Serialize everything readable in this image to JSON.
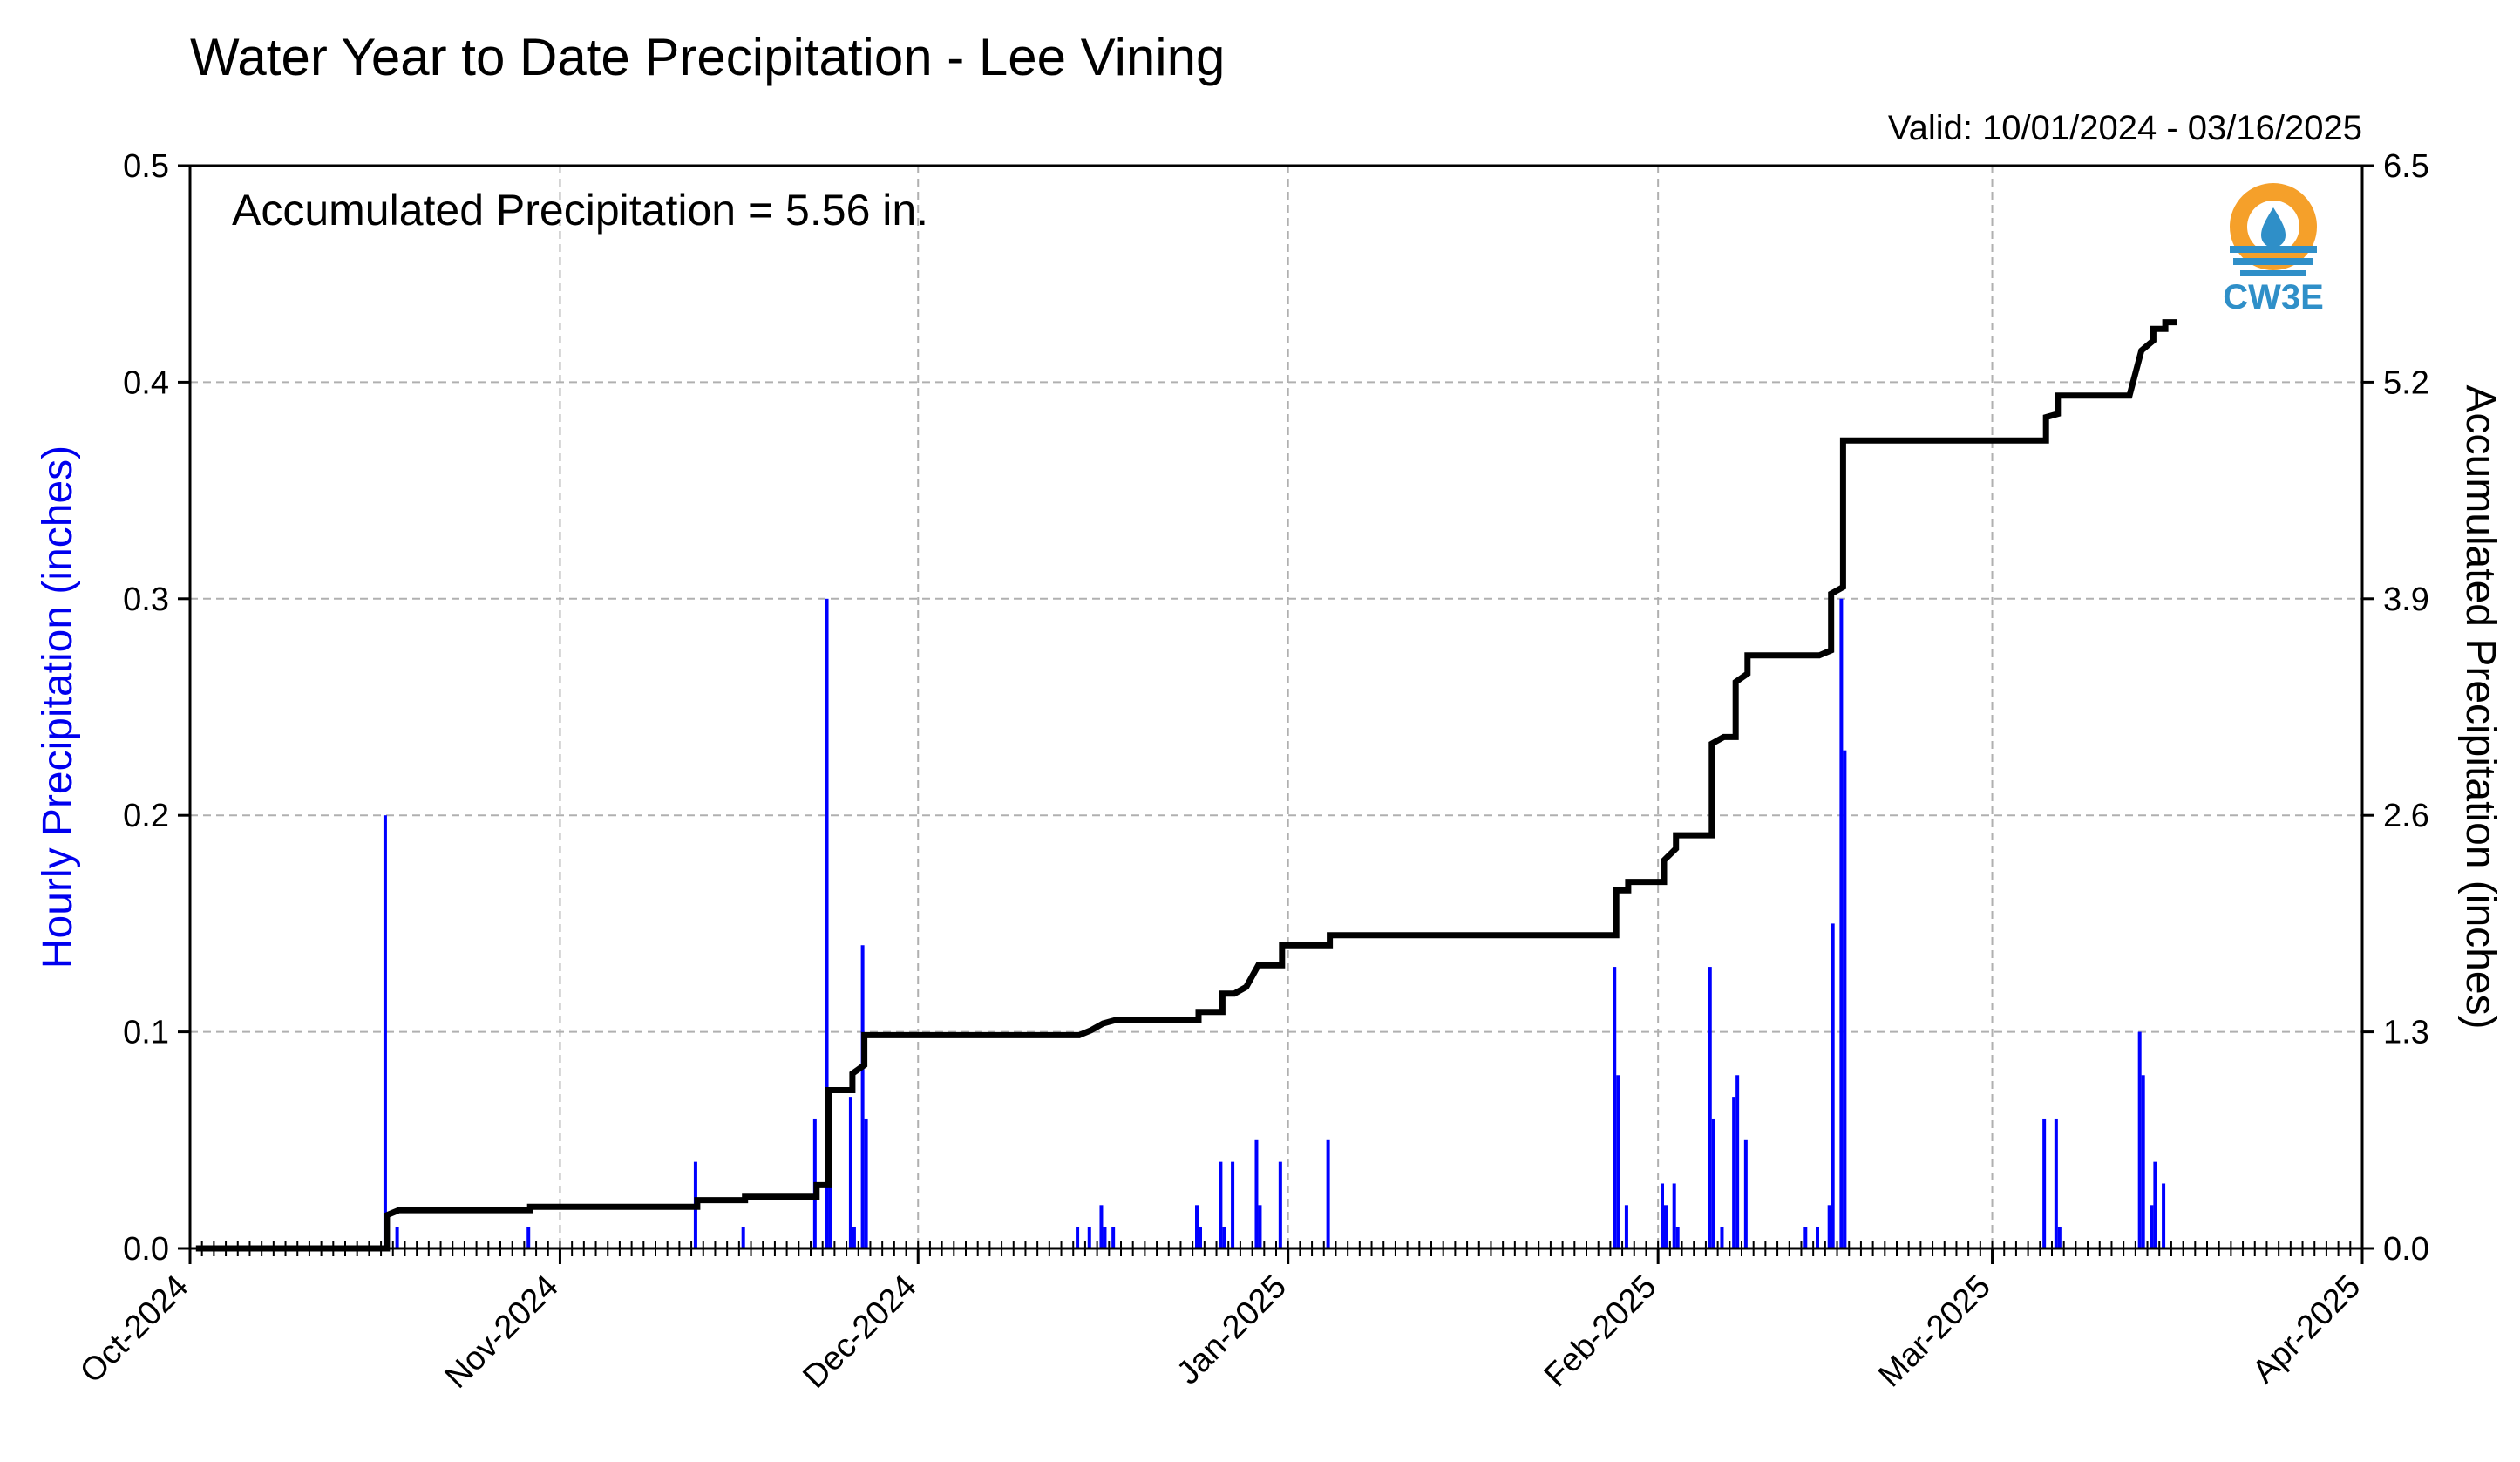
{
  "chart_data": {
    "type": "bar",
    "title": "Water Year to Date Precipitation - Lee Vining",
    "valid_range": "Valid: 10/01/2024 - 03/16/2025",
    "annotation": "Accumulated Precipitation = 5.56 in.",
    "logo_text": "CW3E",
    "ylabel_left": "Hourly Precipitation (inches)",
    "ylabel_right": "Accumulated Precipitation (inches)",
    "x_range": [
      "2024-10-01",
      "2025-04-01"
    ],
    "ylim_left": [
      0,
      0.5
    ],
    "ylim_right": [
      0,
      6.5
    ],
    "yticks_left": [
      "0.0",
      "0.1",
      "0.2",
      "0.3",
      "0.4",
      "0.5"
    ],
    "yticks_right": [
      "0.0",
      "1.3",
      "2.6",
      "3.9",
      "5.2",
      "6.5"
    ],
    "xticks": [
      {
        "date": "2024-10-01",
        "label": "Oct-2024"
      },
      {
        "date": "2024-11-01",
        "label": "Nov-2024"
      },
      {
        "date": "2024-12-01",
        "label": "Dec-2024"
      },
      {
        "date": "2025-01-01",
        "label": "Jan-2025"
      },
      {
        "date": "2025-02-01",
        "label": "Feb-2025"
      },
      {
        "date": "2025-03-01",
        "label": "Mar-2025"
      },
      {
        "date": "2025-04-01",
        "label": "Apr-2025"
      }
    ],
    "grid": true,
    "colors": {
      "hourly": "#0000ff",
      "accumulated": "#000000",
      "grid": "#b0b0b0",
      "logo_orange": "#f5a02a",
      "logo_blue": "#2f8fc8"
    },
    "series": [
      {
        "name": "Hourly Precipitation",
        "type": "bar",
        "points": [
          [
            "2024-10-17",
            0.2
          ],
          [
            "2024-10-18",
            0.01
          ],
          [
            "2024-10-29",
            0.01
          ],
          [
            "2024-11-12",
            0.04
          ],
          [
            "2024-11-16",
            0.01
          ],
          [
            "2024-11-22",
            0.06
          ],
          [
            "2024-11-23",
            0.3
          ],
          [
            "2024-11-23",
            0.07
          ],
          [
            "2024-11-25",
            0.07
          ],
          [
            "2024-11-25",
            0.01
          ],
          [
            "2024-11-26",
            0.14
          ],
          [
            "2024-11-26",
            0.06
          ],
          [
            "2024-12-14",
            0.01
          ],
          [
            "2024-12-15",
            0.01
          ],
          [
            "2024-12-16",
            0.02
          ],
          [
            "2024-12-16",
            0.01
          ],
          [
            "2024-12-17",
            0.01
          ],
          [
            "2024-12-24",
            0.02
          ],
          [
            "2024-12-24",
            0.01
          ],
          [
            "2024-12-26",
            0.04
          ],
          [
            "2024-12-26",
            0.01
          ],
          [
            "2024-12-27",
            0.04
          ],
          [
            "2024-12-29",
            0.05
          ],
          [
            "2024-12-29",
            0.02
          ],
          [
            "2024-12-31",
            0.04
          ],
          [
            "2025-01-04",
            0.05
          ],
          [
            "2025-01-28",
            0.13
          ],
          [
            "2025-01-28",
            0.08
          ],
          [
            "2025-01-29",
            0.02
          ],
          [
            "2025-02-01",
            0.03
          ],
          [
            "2025-02-01",
            0.02
          ],
          [
            "2025-02-02",
            0.03
          ],
          [
            "2025-02-02",
            0.01
          ],
          [
            "2025-02-05",
            0.13
          ],
          [
            "2025-02-05",
            0.06
          ],
          [
            "2025-02-06",
            0.01
          ],
          [
            "2025-02-07",
            0.07
          ],
          [
            "2025-02-07",
            0.08
          ],
          [
            "2025-02-08",
            0.05
          ],
          [
            "2025-02-13",
            0.01
          ],
          [
            "2025-02-14",
            0.01
          ],
          [
            "2025-02-15",
            0.02
          ],
          [
            "2025-02-15",
            0.15
          ],
          [
            "2025-02-16",
            0.3
          ],
          [
            "2025-02-16",
            0.23
          ],
          [
            "2025-03-05",
            0.06
          ],
          [
            "2025-03-06",
            0.06
          ],
          [
            "2025-03-06",
            0.01
          ],
          [
            "2025-03-13",
            0.1
          ],
          [
            "2025-03-13",
            0.08
          ],
          [
            "2025-03-14",
            0.02
          ],
          [
            "2025-03-14",
            0.04
          ],
          [
            "2025-03-15",
            0.03
          ]
        ]
      },
      {
        "name": "Accumulated Precipitation",
        "type": "line",
        "points": [
          [
            "2024-10-01",
            0.0
          ],
          [
            "2024-10-17",
            0.0
          ],
          [
            "2024-10-17",
            0.2
          ],
          [
            "2024-10-18",
            0.23
          ],
          [
            "2024-10-29",
            0.23
          ],
          [
            "2024-10-29",
            0.25
          ],
          [
            "2024-11-12",
            0.25
          ],
          [
            "2024-11-12",
            0.29
          ],
          [
            "2024-11-16",
            0.29
          ],
          [
            "2024-11-16",
            0.31
          ],
          [
            "2024-11-22",
            0.31
          ],
          [
            "2024-11-22",
            0.38
          ],
          [
            "2024-11-23",
            0.38
          ],
          [
            "2024-11-23",
            0.95
          ],
          [
            "2024-11-25",
            0.95
          ],
          [
            "2024-11-25",
            1.05
          ],
          [
            "2024-11-26",
            1.1
          ],
          [
            "2024-11-26",
            1.28
          ],
          [
            "2024-12-14",
            1.28
          ],
          [
            "2024-12-15",
            1.31
          ],
          [
            "2024-12-16",
            1.35
          ],
          [
            "2024-12-17",
            1.37
          ],
          [
            "2024-12-24",
            1.37
          ],
          [
            "2024-12-24",
            1.42
          ],
          [
            "2024-12-26",
            1.42
          ],
          [
            "2024-12-26",
            1.53
          ],
          [
            "2024-12-27",
            1.53
          ],
          [
            "2024-12-28",
            1.57
          ],
          [
            "2024-12-29",
            1.7
          ],
          [
            "2024-12-31",
            1.7
          ],
          [
            "2024-12-31",
            1.82
          ],
          [
            "2025-01-04",
            1.82
          ],
          [
            "2025-01-04",
            1.88
          ],
          [
            "2025-01-28",
            1.88
          ],
          [
            "2025-01-28",
            2.15
          ],
          [
            "2025-01-29",
            2.15
          ],
          [
            "2025-01-29",
            2.2
          ],
          [
            "2025-02-01",
            2.2
          ],
          [
            "2025-02-01",
            2.33
          ],
          [
            "2025-02-02",
            2.4
          ],
          [
            "2025-02-02",
            2.48
          ],
          [
            "2025-02-05",
            2.48
          ],
          [
            "2025-02-05",
            3.03
          ],
          [
            "2025-02-06",
            3.07
          ],
          [
            "2025-02-07",
            3.07
          ],
          [
            "2025-02-07",
            3.4
          ],
          [
            "2025-02-08",
            3.45
          ],
          [
            "2025-02-08",
            3.56
          ],
          [
            "2025-02-14",
            3.56
          ],
          [
            "2025-02-15",
            3.59
          ],
          [
            "2025-02-15",
            3.93
          ],
          [
            "2025-02-16",
            3.97
          ],
          [
            "2025-02-16",
            4.85
          ],
          [
            "2025-03-05",
            4.85
          ],
          [
            "2025-03-05",
            4.99
          ],
          [
            "2025-03-06",
            5.01
          ],
          [
            "2025-03-06",
            5.12
          ],
          [
            "2025-03-12",
            5.12
          ],
          [
            "2025-03-13",
            5.39
          ],
          [
            "2025-03-14",
            5.45
          ],
          [
            "2025-03-14",
            5.52
          ],
          [
            "2025-03-15",
            5.52
          ],
          [
            "2025-03-15",
            5.56
          ],
          [
            "2025-03-16",
            5.56
          ]
        ]
      }
    ]
  }
}
